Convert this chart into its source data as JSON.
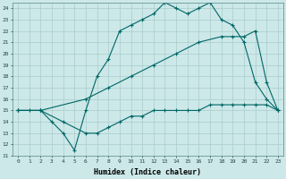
{
  "xlabel": "Humidex (Indice chaleur)",
  "bg_color": "#cce8e8",
  "grid_color": "#aacccc",
  "line_color": "#006666",
  "xlim": [
    -0.5,
    23.5
  ],
  "ylim": [
    11,
    24.5
  ],
  "xticks": [
    0,
    1,
    2,
    3,
    4,
    5,
    6,
    7,
    8,
    9,
    10,
    11,
    12,
    13,
    14,
    15,
    16,
    17,
    18,
    19,
    20,
    21,
    22,
    23
  ],
  "yticks": [
    11,
    12,
    13,
    14,
    15,
    16,
    17,
    18,
    19,
    20,
    21,
    22,
    23,
    24
  ],
  "line1_x": [
    0,
    1,
    2,
    3,
    4,
    5,
    6,
    7,
    8,
    9,
    10,
    11,
    12,
    13,
    14,
    15,
    16,
    17,
    18,
    19,
    20,
    21,
    22,
    23
  ],
  "line1_y": [
    15,
    15,
    15,
    14,
    13,
    11.5,
    15,
    18,
    19.5,
    22,
    22.5,
    23,
    23.5,
    24.5,
    24,
    23.5,
    24,
    24.5,
    23,
    22.5,
    21,
    17.5,
    16,
    15
  ],
  "line2_x": [
    0,
    2,
    6,
    8,
    10,
    12,
    14,
    16,
    18,
    19,
    20,
    21,
    22,
    23
  ],
  "line2_y": [
    15,
    15,
    16,
    17,
    18,
    19,
    20,
    21,
    21.5,
    21.5,
    21.5,
    22,
    17.5,
    15
  ],
  "line3_x": [
    0,
    2,
    4,
    6,
    7,
    8,
    9,
    10,
    11,
    12,
    13,
    14,
    15,
    16,
    17,
    18,
    19,
    20,
    21,
    22,
    23
  ],
  "line3_y": [
    15,
    15,
    14,
    13,
    13,
    13.5,
    14,
    14.5,
    14.5,
    15,
    15,
    15,
    15,
    15,
    15.5,
    15.5,
    15.5,
    15.5,
    15.5,
    15.5,
    15
  ]
}
